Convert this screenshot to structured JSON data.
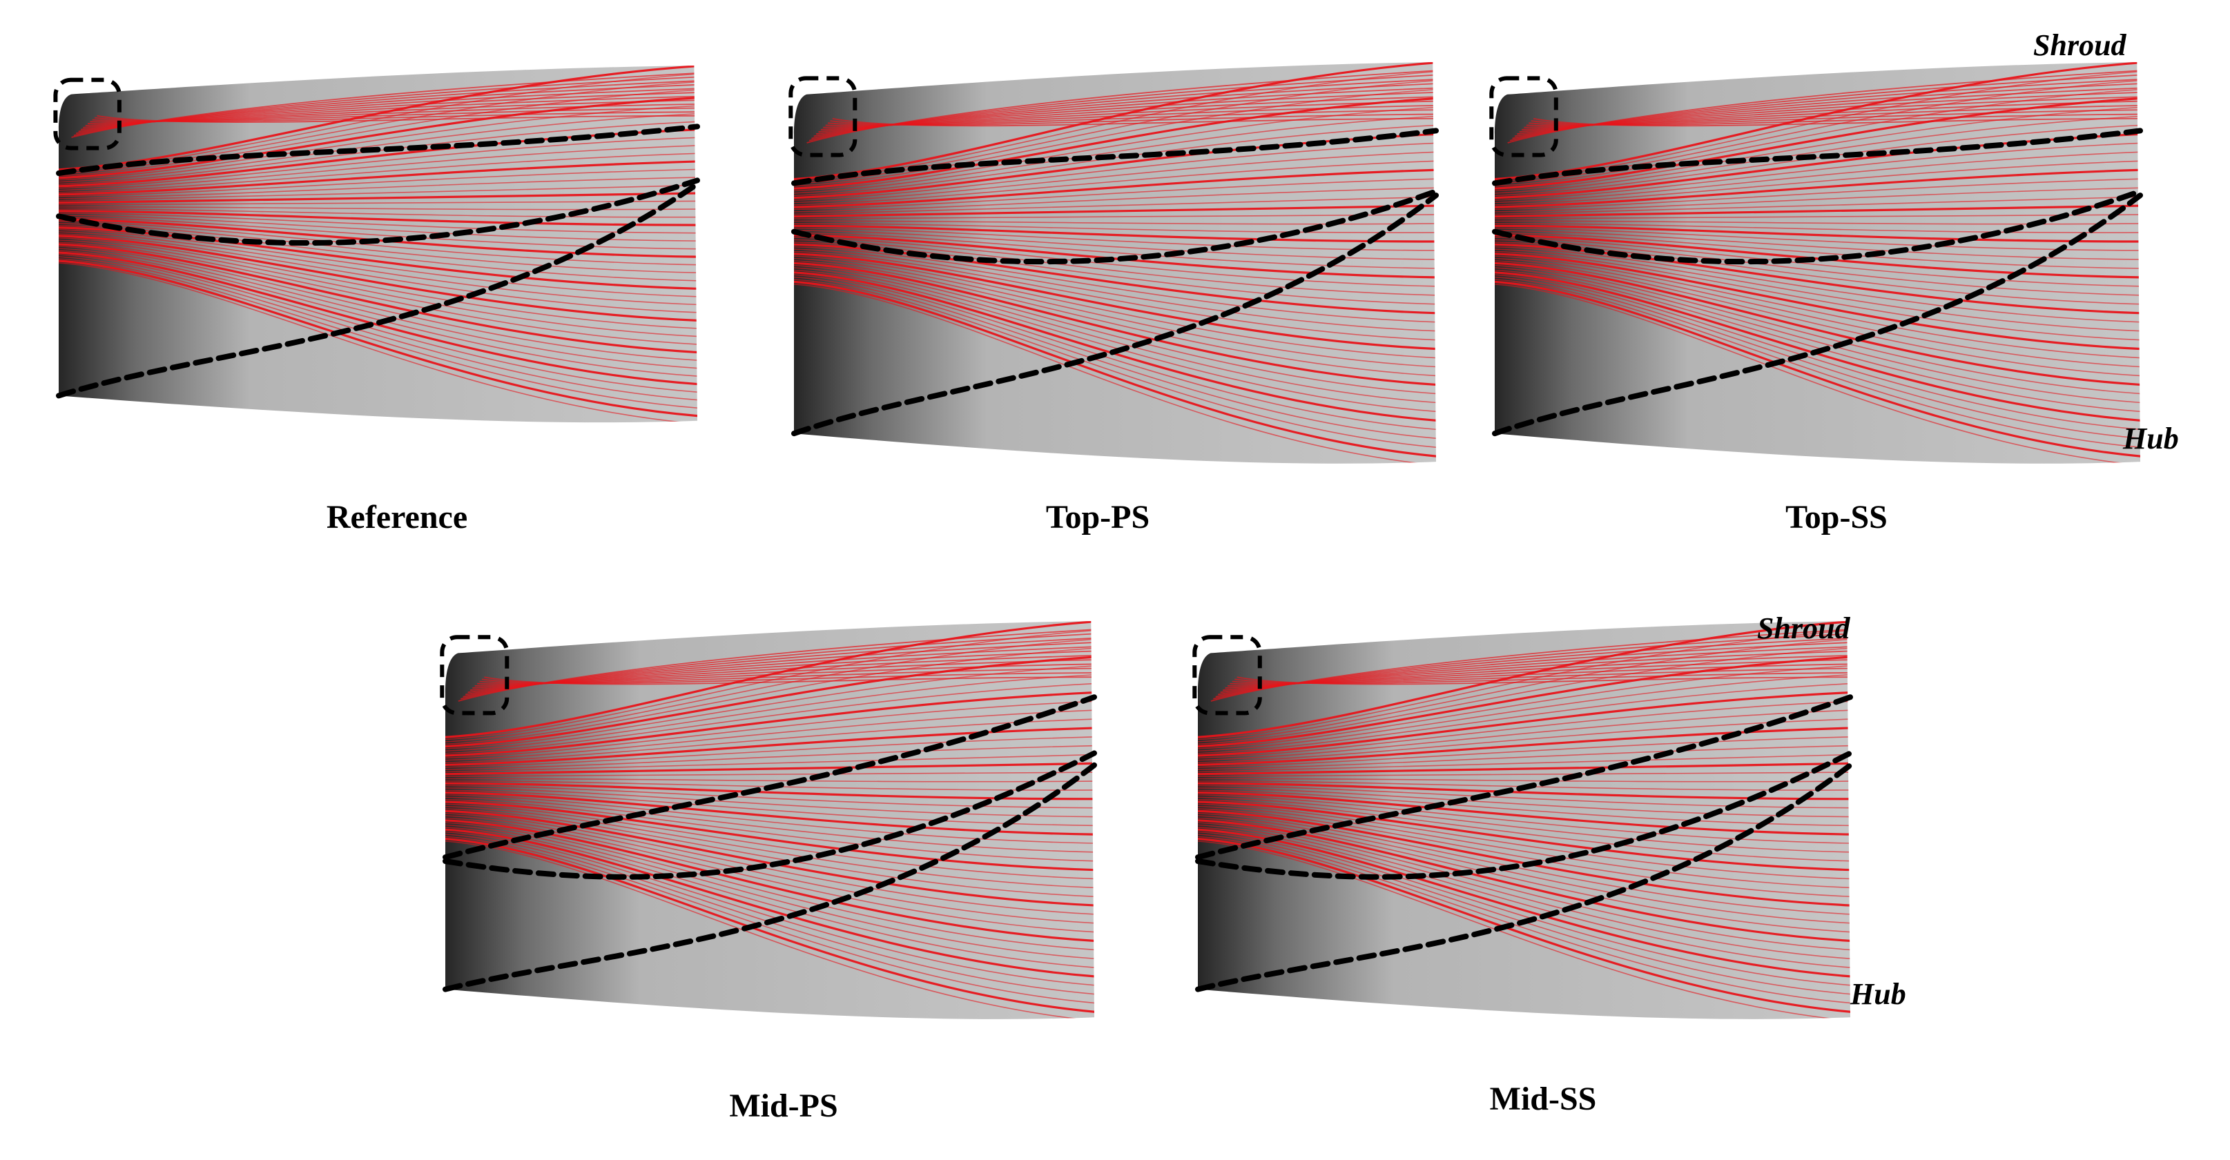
{
  "panels": [
    {
      "id": "reference",
      "caption": "Reference",
      "separation_lines": [
        "upper",
        "middle",
        "lower"
      ],
      "corner_box": true
    },
    {
      "id": "top-ps",
      "caption": "Top-PS",
      "separation_lines": [
        "upper",
        "middle",
        "lower"
      ],
      "corner_box": true
    },
    {
      "id": "top-ss",
      "caption": "Top-SS",
      "separation_lines": [
        "upper",
        "middle",
        "lower"
      ],
      "corner_box": true,
      "labels": {
        "top": "Shroud",
        "bottom": "Hub"
      }
    },
    {
      "id": "mid-ps",
      "caption": "Mid-PS",
      "separation_lines": [
        "upper",
        "lower"
      ],
      "corner_box": true
    },
    {
      "id": "mid-ss",
      "caption": "Mid-SS",
      "separation_lines": [
        "upper",
        "lower"
      ],
      "corner_box": true,
      "labels": {
        "top": "Shroud",
        "bottom": "Hub"
      }
    }
  ],
  "colors": {
    "surface_light": "#c4c4c4",
    "surface_dark": "#2a2a2a",
    "streamline": "#e8141a",
    "dashed": "#000000"
  }
}
